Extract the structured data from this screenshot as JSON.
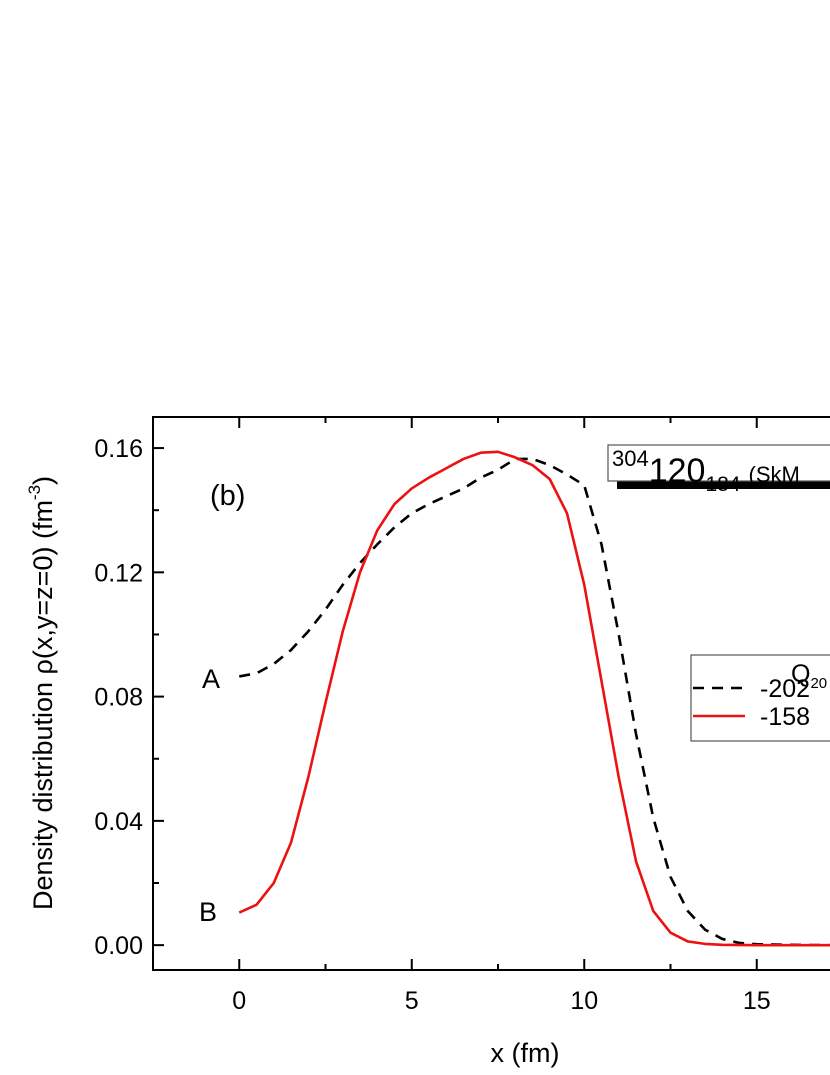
{
  "chart_data": {
    "type": "line",
    "xlabel": "x (fm)",
    "ylabel_main": "Density distribution ρ(x,y=z=0) (fm",
    "ylabel_sup": "-3",
    "ylabel_close": ")",
    "xlim": [
      -2.5,
      17.5
    ],
    "ylim": [
      -0.008,
      0.17
    ],
    "x_ticks": [
      0,
      5,
      10,
      15
    ],
    "x_tick_labels": [
      "0",
      "5",
      "10",
      "15"
    ],
    "y_ticks": [
      0.0,
      0.04,
      0.08,
      0.12,
      0.16
    ],
    "y_tick_labels": [
      "0.00",
      "0.04",
      "0.08",
      "0.12",
      "0.16"
    ],
    "panel_label": "(b)",
    "title_box": {
      "mass": "304",
      "element": "120",
      "neutrons": "184",
      "force": "(SkM"
    },
    "legend": {
      "header_main": "Q",
      "header_sub": "20",
      "entries": [
        "-202",
        "-158"
      ]
    },
    "series": [
      {
        "label": "A",
        "color": "#000000",
        "dash": "dashed",
        "x": [
          0,
          0.5,
          1,
          1.5,
          2,
          2.5,
          3,
          3.5,
          4,
          4.5,
          5,
          5.5,
          6,
          6.5,
          7,
          7.5,
          8,
          8.5,
          9,
          9.5,
          10,
          10.5,
          11,
          11.5,
          12,
          12.5,
          13,
          13.5,
          14,
          14.5,
          15,
          16,
          17,
          17.5
        ],
        "y": [
          0.0865,
          0.0875,
          0.0905,
          0.095,
          0.101,
          0.108,
          0.116,
          0.123,
          0.129,
          0.1345,
          0.139,
          0.142,
          0.1445,
          0.147,
          0.1505,
          0.153,
          0.1565,
          0.1565,
          0.1545,
          0.1515,
          0.148,
          0.129,
          0.1,
          0.068,
          0.041,
          0.022,
          0.011,
          0.005,
          0.002,
          0.0007,
          0.0003,
          0.0001,
          0.0,
          0.0
        ]
      },
      {
        "label": "B",
        "color": "#ee1111",
        "dash": "solid",
        "x": [
          0,
          0.5,
          1,
          1.5,
          2,
          2.5,
          3,
          3.5,
          4,
          4.5,
          5,
          5.5,
          6,
          6.5,
          7,
          7.5,
          8,
          8.5,
          9,
          9.5,
          10,
          10.5,
          11,
          11.5,
          12,
          12.5,
          13,
          13.5,
          14,
          15,
          16,
          17,
          17.5
        ],
        "y": [
          0.0105,
          0.013,
          0.02,
          0.033,
          0.054,
          0.078,
          0.101,
          0.12,
          0.1335,
          0.142,
          0.147,
          0.1505,
          0.1535,
          0.1565,
          0.1585,
          0.1588,
          0.157,
          0.1545,
          0.15,
          0.139,
          0.116,
          0.085,
          0.054,
          0.027,
          0.011,
          0.004,
          0.0012,
          0.0004,
          0.0001,
          0.0,
          0.0,
          0.0,
          0.0
        ]
      }
    ]
  }
}
